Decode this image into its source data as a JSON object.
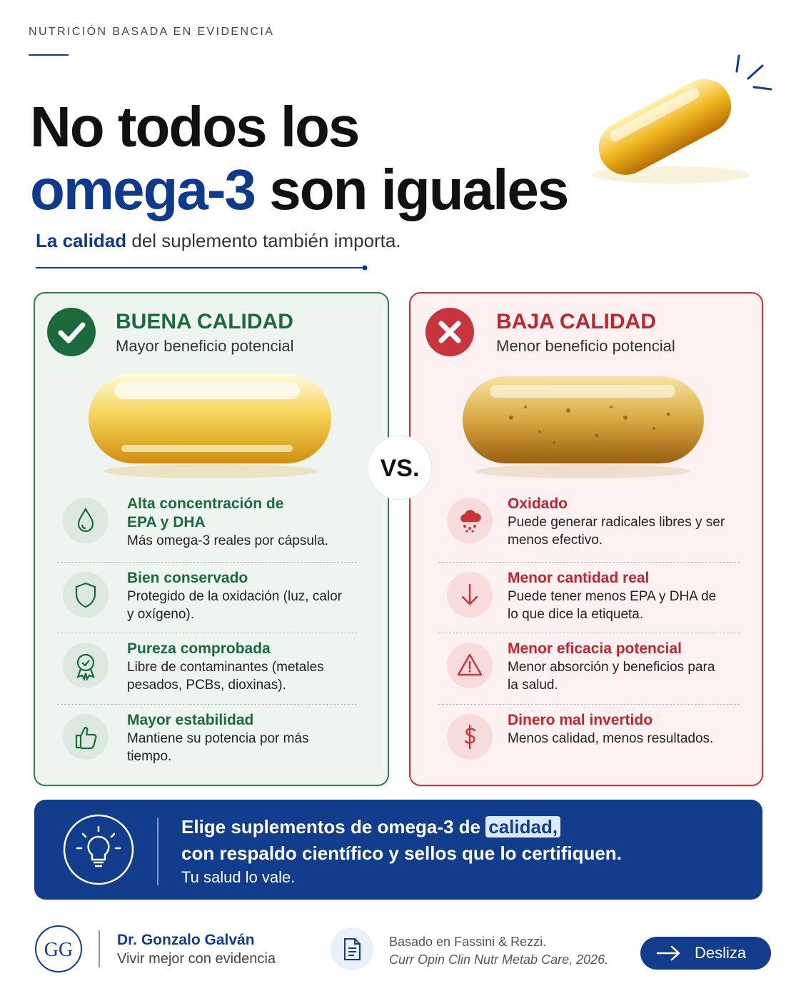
{
  "header": {
    "kicker": "NUTRICIÓN BASADA EN EVIDENCIA",
    "title_line1": "No todos los",
    "title_highlight": "omega-3",
    "title_rest": "son iguales",
    "subtitle_highlight": "La calidad",
    "subtitle_rest": "del suplemento también importa."
  },
  "good": {
    "title": "BUENA CALIDAD",
    "subtitle": "Mayor beneficio potencial",
    "items": [
      {
        "title": "Alta concentración de EPA y DHA",
        "text": "Más omega-3 reales por cápsula."
      },
      {
        "title": "Bien conservado",
        "text": "Protegido de la oxidación (luz, calor y oxígeno)."
      },
      {
        "title": "Pureza comprobada",
        "text": "Libre de contaminantes (metales pesados, PCBs, dioxinas)."
      },
      {
        "title": "Mayor estabilidad",
        "text": "Mantiene su potencia por más tiempo."
      }
    ]
  },
  "vs": "VS.",
  "bad": {
    "title": "BAJA CALIDAD",
    "subtitle": "Menor beneficio potencial",
    "items": [
      {
        "title": "Oxidado",
        "text": "Puede generar radicales libres y ser menos efectivo."
      },
      {
        "title": "Menor cantidad real",
        "text": "Puede tener menos EPA y DHA de lo que dice la etiqueta."
      },
      {
        "title": "Menor eficacia potencial",
        "text": "Menor absorción y beneficios para la salud."
      },
      {
        "title": "Dinero mal invertido",
        "text": "Menos calidad, menos resultados."
      }
    ]
  },
  "callout": {
    "line1": "Elige suplementos de omega-3 de",
    "highlight": "calidad,",
    "line2": "con respaldo científico y sellos que lo certifiquen.",
    "line3": "Tu salud lo vale."
  },
  "footer": {
    "initials": "GG",
    "name": "Dr. Gonzalo Galván",
    "tagline": "Vivir mejor con evidencia",
    "source_line1": "Basado en Fassini & Rezzi.",
    "source_line2": "Curr Opin Clin Nutr Metab Care, 2026.",
    "button": "Desliza"
  }
}
